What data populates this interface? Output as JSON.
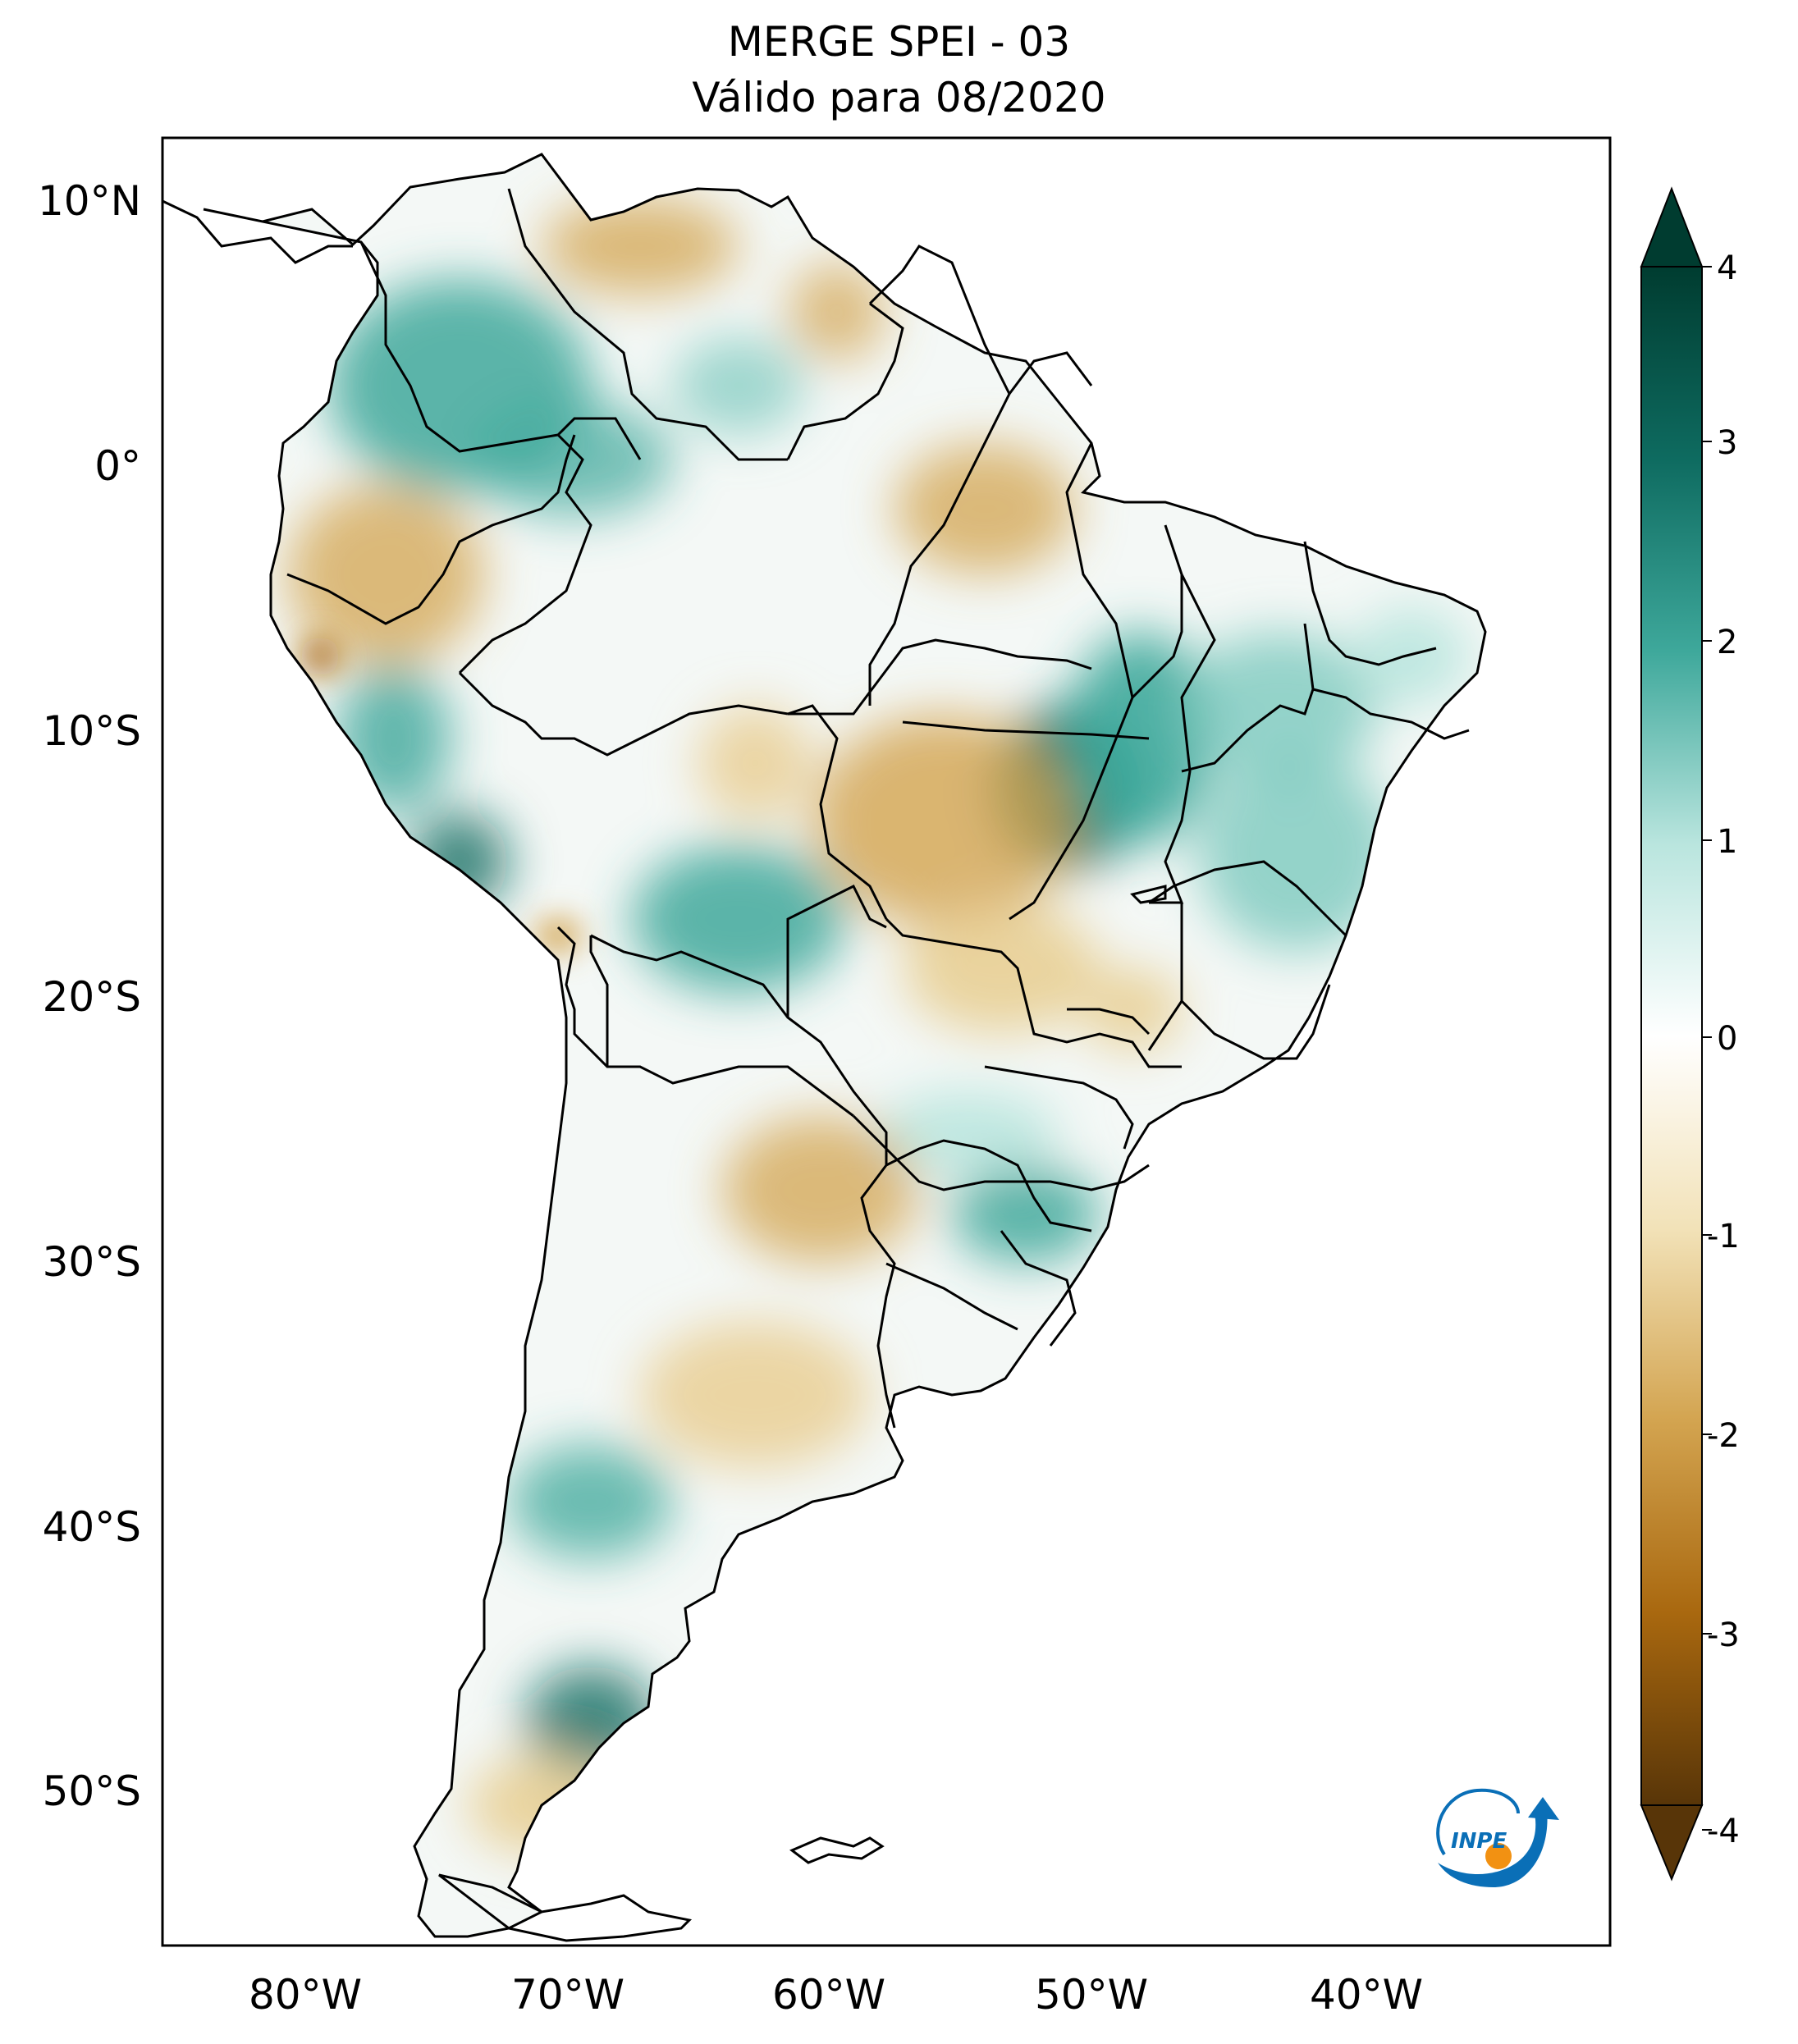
{
  "title_line1": "MERGE   SPEI - 03",
  "title_line2": "Válido para 08/2020",
  "lat_labels": [
    "10°N",
    "0°",
    "10°S",
    "20°S",
    "30°S",
    "40°S",
    "50°S"
  ],
  "lon_labels": [
    "80°W",
    "70°W",
    "60°W",
    "50°W",
    "40°W"
  ],
  "colorbar": {
    "ticks": [
      "4",
      "3",
      "2",
      "1",
      "0",
      "-1",
      "-2",
      "-3",
      "-4"
    ],
    "colors": {
      "p4": "#003c30",
      "p3": "#0e6b60",
      "p2": "#3ea89b",
      "p1": "#b9e5de",
      "zero": "#ffffff",
      "n1": "#f2e2b8",
      "n2": "#d3a450",
      "n3": "#a9680f",
      "n4": "#583508"
    }
  },
  "logo": {
    "text": "INPE",
    "colors": {
      "blue": "#0a6fb7",
      "orange": "#f29112"
    }
  }
}
